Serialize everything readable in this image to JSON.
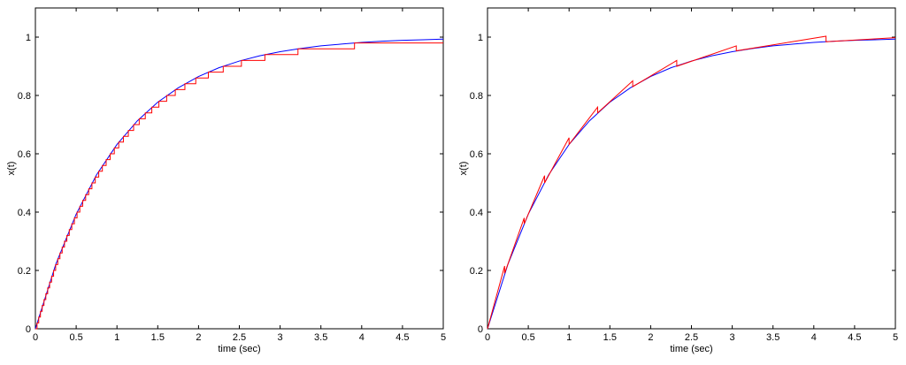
{
  "chart_data": [
    {
      "type": "line",
      "x_label": "time (sec)",
      "y_label": "x(t)",
      "xlim": [
        0,
        5
      ],
      "ylim": [
        0,
        1.1
      ],
      "xticks": [
        0,
        0.5,
        1,
        1.5,
        2,
        2.5,
        3,
        3.5,
        4,
        4.5,
        5
      ],
      "yticks": [
        0,
        0.2,
        0.4,
        0.6,
        0.8,
        1
      ],
      "series": [
        {
          "color": "#0000ff",
          "drawstyle": "default",
          "x": [
            0,
            0.25,
            0.5,
            0.75,
            1,
            1.25,
            1.5,
            1.75,
            2,
            2.25,
            2.5,
            2.75,
            3,
            3.25,
            3.5,
            3.75,
            4,
            4.25,
            4.5,
            4.75,
            5
          ],
          "values": [
            0,
            0.221,
            0.393,
            0.528,
            0.632,
            0.713,
            0.777,
            0.826,
            0.865,
            0.895,
            0.918,
            0.936,
            0.95,
            0.961,
            0.97,
            0.976,
            0.982,
            0.986,
            0.989,
            0.991,
            0.993
          ]
        },
        {
          "color": "#ff0000",
          "drawstyle": "steps-post",
          "x": [
            0,
            0.0202,
            0.0408,
            0.0619,
            0.0834,
            0.1054,
            0.1278,
            0.1508,
            0.1744,
            0.1985,
            0.2231,
            0.2485,
            0.2744,
            0.3011,
            0.3285,
            0.3567,
            0.3857,
            0.4155,
            0.4463,
            0.478,
            0.5108,
            0.5447,
            0.5798,
            0.6162,
            0.6539,
            0.6931,
            0.734,
            0.7765,
            0.821,
            0.8675,
            0.9163,
            0.9676,
            1.0217,
            1.0788,
            1.1394,
            1.204,
            1.273,
            1.3471,
            1.4271,
            1.5141,
            1.6094,
            1.7148,
            1.8326,
            1.9661,
            2.1203,
            2.3026,
            2.5257,
            2.8134,
            3.2189,
            3.912,
            5
          ],
          "values": [
            0,
            0.02,
            0.04,
            0.06,
            0.08,
            0.1,
            0.12,
            0.14,
            0.16,
            0.18,
            0.2,
            0.22,
            0.24,
            0.26,
            0.28,
            0.3,
            0.32,
            0.34,
            0.36,
            0.38,
            0.4,
            0.42,
            0.44,
            0.46,
            0.48,
            0.5,
            0.52,
            0.54,
            0.56,
            0.58,
            0.6,
            0.62,
            0.64,
            0.66,
            0.68,
            0.7,
            0.72,
            0.74,
            0.76,
            0.78,
            0.8,
            0.82,
            0.84,
            0.86,
            0.88,
            0.9,
            0.92,
            0.94,
            0.96,
            0.98,
            0.98
          ]
        }
      ]
    },
    {
      "type": "line",
      "x_label": "time (sec)",
      "y_label": "x(t)",
      "xlim": [
        0,
        5
      ],
      "ylim": [
        0,
        1.1
      ],
      "xticks": [
        0,
        0.5,
        1,
        1.5,
        2,
        2.5,
        3,
        3.5,
        4,
        4.5,
        5
      ],
      "yticks": [
        0,
        0.2,
        0.4,
        0.6,
        0.8,
        1
      ],
      "series": [
        {
          "color": "#0000ff",
          "drawstyle": "default",
          "x": [
            0,
            0.25,
            0.5,
            0.75,
            1,
            1.25,
            1.5,
            1.75,
            2,
            2.25,
            2.5,
            2.75,
            3,
            3.25,
            3.5,
            3.75,
            4,
            4.25,
            4.5,
            4.75,
            5
          ],
          "values": [
            0,
            0.221,
            0.393,
            0.528,
            0.632,
            0.713,
            0.777,
            0.826,
            0.865,
            0.895,
            0.918,
            0.936,
            0.95,
            0.961,
            0.97,
            0.976,
            0.982,
            0.986,
            0.989,
            0.991,
            0.993
          ]
        },
        {
          "color": "#ff0000",
          "drawstyle": "default",
          "x": [
            0,
            0.21,
            0.21,
            0.45,
            0.45,
            0.7,
            0.7,
            1.0,
            1.0,
            1.35,
            1.35,
            1.78,
            1.78,
            2.32,
            2.32,
            3.05,
            3.05,
            4.15,
            4.15,
            5
          ],
          "values": [
            0,
            0.215,
            0.19,
            0.38,
            0.36,
            0.525,
            0.5,
            0.655,
            0.632,
            0.76,
            0.74,
            0.85,
            0.83,
            0.92,
            0.9,
            0.97,
            0.953,
            1.003,
            0.984,
            0.998
          ]
        }
      ]
    }
  ]
}
